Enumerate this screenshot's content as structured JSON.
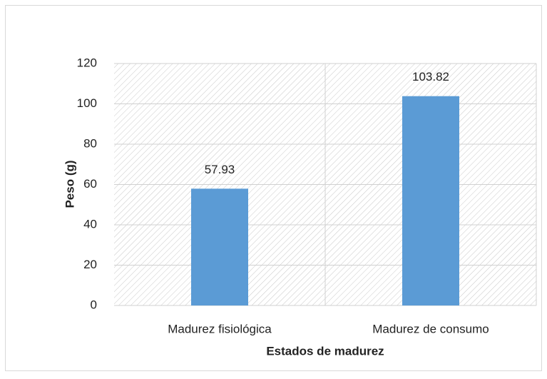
{
  "chart_data": {
    "type": "bar",
    "x_label": "Estados de madurez",
    "y_label": "Peso (g)",
    "categories": [
      "Madurez fisiológica",
      "Madurez de consumo"
    ],
    "values": [
      57.93,
      103.82
    ],
    "color": "#5b9bd5",
    "ylim": [
      0,
      120
    ],
    "yticks": [
      0,
      20,
      40,
      60,
      80,
      100,
      120
    ],
    "grid": true
  }
}
